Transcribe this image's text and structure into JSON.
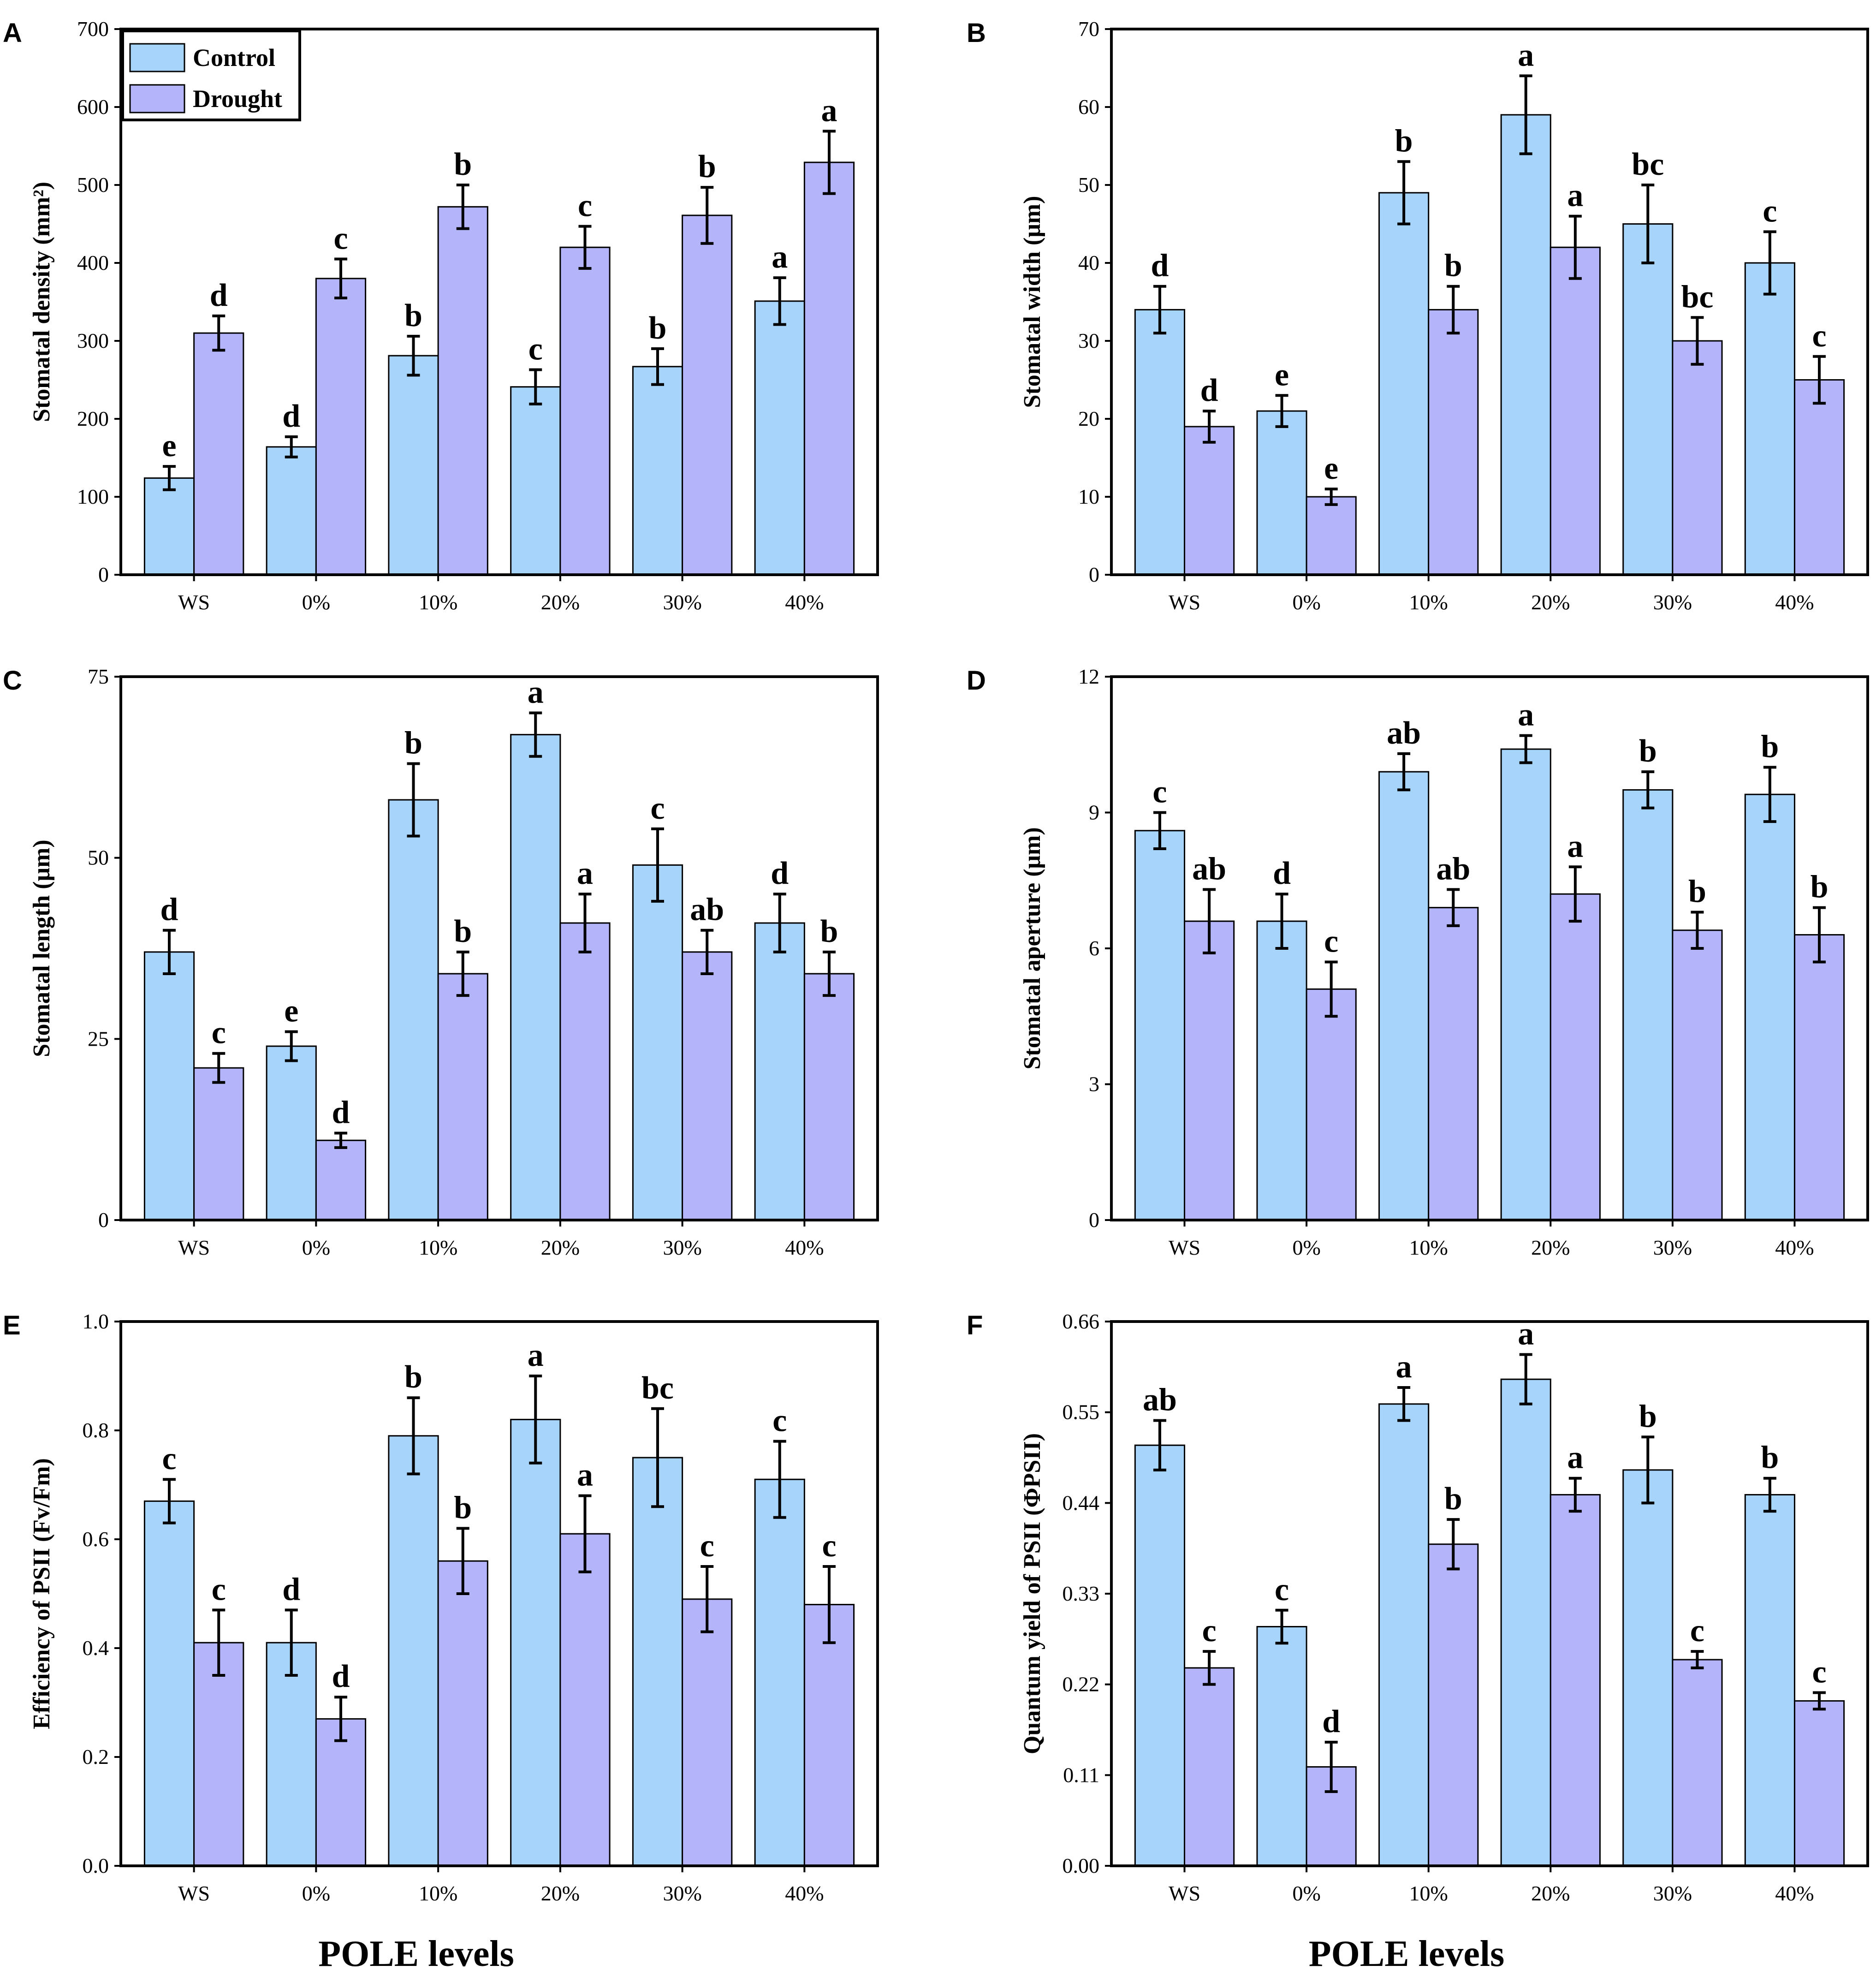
{
  "colors": {
    "control": "#a6d4fa",
    "drought": "#b4b4fa"
  },
  "legend": {
    "control": "Control",
    "drought": "Drought"
  },
  "chart_data": [
    {
      "panel": "A",
      "type": "bar",
      "categories": [
        "WS",
        "0%",
        "10%",
        "20%",
        "30%",
        "40%"
      ],
      "ylabel": "Stomatal density (mm²)",
      "xlabel": "",
      "ylim": [
        0,
        700
      ],
      "yticks": [
        "0",
        "100",
        "200",
        "300",
        "400",
        "500",
        "600",
        "700"
      ],
      "legend_position": "top-left",
      "series": [
        {
          "name": "Control",
          "values": [
            124,
            164,
            281,
            241,
            267,
            351
          ],
          "errors": [
            15,
            13,
            25,
            22,
            23,
            30
          ],
          "labels": [
            "e",
            "d",
            "b",
            "c",
            "b",
            "a"
          ]
        },
        {
          "name": "Drought",
          "values": [
            310,
            380,
            472,
            420,
            461,
            529
          ],
          "errors": [
            22,
            25,
            28,
            27,
            36,
            40
          ],
          "labels": [
            "d",
            "c",
            "b",
            "c",
            "b",
            "a"
          ]
        }
      ]
    },
    {
      "panel": "B",
      "type": "bar",
      "categories": [
        "WS",
        "0%",
        "10%",
        "20%",
        "30%",
        "40%"
      ],
      "ylabel": "Stomatal width (μm)",
      "xlabel": "",
      "ylim": [
        0,
        70
      ],
      "yticks": [
        "0",
        "10",
        "20",
        "30",
        "40",
        "50",
        "60",
        "70"
      ],
      "series": [
        {
          "name": "Control",
          "values": [
            34,
            21,
            49,
            59,
            45,
            40
          ],
          "errors": [
            3,
            2,
            4,
            5,
            5,
            4
          ],
          "labels": [
            "d",
            "e",
            "b",
            "a",
            "bc",
            "c"
          ]
        },
        {
          "name": "Drought",
          "values": [
            19,
            10,
            34,
            42,
            30,
            25
          ],
          "errors": [
            2,
            1,
            3,
            4,
            3,
            3
          ],
          "labels": [
            "d",
            "e",
            "b",
            "a",
            "bc",
            "c"
          ]
        }
      ]
    },
    {
      "panel": "C",
      "type": "bar",
      "categories": [
        "WS",
        "0%",
        "10%",
        "20%",
        "30%",
        "40%"
      ],
      "ylabel": "Stomatal length (μm)",
      "xlabel": "",
      "ylim": [
        0,
        75
      ],
      "yticks": [
        "0",
        "25",
        "50",
        "75"
      ],
      "series": [
        {
          "name": "Control",
          "values": [
            37,
            24,
            58,
            67,
            49,
            41
          ],
          "errors": [
            3,
            2,
            5,
            3,
            5,
            4
          ],
          "labels": [
            "d",
            "e",
            "b",
            "a",
            "c",
            "d"
          ]
        },
        {
          "name": "Drought",
          "values": [
            21,
            11,
            34,
            41,
            37,
            34
          ],
          "errors": [
            2,
            1,
            3,
            4,
            3,
            3
          ],
          "labels": [
            "c",
            "d",
            "b",
            "a",
            "ab",
            "b"
          ]
        }
      ]
    },
    {
      "panel": "D",
      "type": "bar",
      "categories": [
        "WS",
        "0%",
        "10%",
        "20%",
        "30%",
        "40%"
      ],
      "ylabel": "Stomatal aperture (μm)",
      "xlabel": "",
      "ylim": [
        0,
        12
      ],
      "yticks": [
        "0",
        "3",
        "6",
        "9",
        "12"
      ],
      "series": [
        {
          "name": "Control",
          "values": [
            8.6,
            6.6,
            9.9,
            10.4,
            9.5,
            9.4
          ],
          "errors": [
            0.4,
            0.6,
            0.4,
            0.3,
            0.4,
            0.6
          ],
          "labels": [
            "c",
            "d",
            "ab",
            "a",
            "b",
            "b"
          ]
        },
        {
          "name": "Drought",
          "values": [
            6.6,
            5.1,
            6.9,
            7.2,
            6.4,
            6.3
          ],
          "errors": [
            0.7,
            0.6,
            0.4,
            0.6,
            0.4,
            0.6
          ],
          "labels": [
            "ab",
            "c",
            "ab",
            "a",
            "b",
            "b"
          ]
        }
      ]
    },
    {
      "panel": "E",
      "type": "bar",
      "categories": [
        "WS",
        "0%",
        "10%",
        "20%",
        "30%",
        "40%"
      ],
      "ylabel": "Efficiency of PSII (Fv/Fm)",
      "xlabel": "POLE levels",
      "ylim": [
        0,
        1
      ],
      "yticks": [
        "0.0",
        "0.2",
        "0.4",
        "0.6",
        "0.8",
        "1.0"
      ],
      "series": [
        {
          "name": "Control",
          "values": [
            0.67,
            0.41,
            0.79,
            0.82,
            0.75,
            0.71
          ],
          "errors": [
            0.04,
            0.06,
            0.07,
            0.08,
            0.09,
            0.07
          ],
          "labels": [
            "c",
            "d",
            "b",
            "a",
            "bc",
            "c"
          ]
        },
        {
          "name": "Drought",
          "values": [
            0.41,
            0.27,
            0.56,
            0.61,
            0.49,
            0.48
          ],
          "errors": [
            0.06,
            0.04,
            0.06,
            0.07,
            0.06,
            0.07
          ],
          "labels": [
            "c",
            "d",
            "b",
            "a",
            "c",
            "c"
          ]
        }
      ]
    },
    {
      "panel": "F",
      "type": "bar",
      "categories": [
        "WS",
        "0%",
        "10%",
        "20%",
        "30%",
        "40%"
      ],
      "ylabel": "Quantum yield of PSII (ΦPSII)",
      "xlabel": "POLE levels",
      "ylim": [
        0,
        0.66
      ],
      "yticks": [
        "0.00",
        "0.11",
        "0.22",
        "0.33",
        "0.44",
        "0.55",
        "0.66"
      ],
      "series": [
        {
          "name": "Control",
          "values": [
            0.51,
            0.29,
            0.56,
            0.59,
            0.48,
            0.45
          ],
          "errors": [
            0.03,
            0.02,
            0.02,
            0.03,
            0.04,
            0.02
          ],
          "labels": [
            "ab",
            "c",
            "a",
            "a",
            "b",
            "b"
          ]
        },
        {
          "name": "Drought",
          "values": [
            0.24,
            0.12,
            0.39,
            0.45,
            0.25,
            0.2
          ],
          "errors": [
            0.02,
            0.03,
            0.03,
            0.02,
            0.01,
            0.01
          ],
          "labels": [
            "c",
            "d",
            "b",
            "a",
            "c",
            "c"
          ]
        }
      ]
    }
  ]
}
